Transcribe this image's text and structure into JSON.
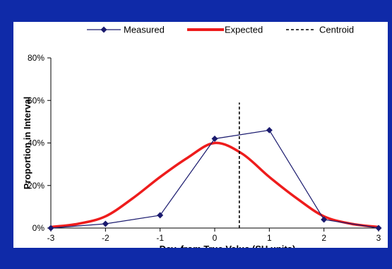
{
  "chart_data": {
    "type": "line",
    "title": "",
    "xlabel": "Dev. from True Value (SU units)",
    "ylabel": "Proportion in Interval",
    "xlim": [
      -3,
      3
    ],
    "ylim": [
      0,
      0.8
    ],
    "x_ticks": [
      -3,
      -2,
      -1,
      0,
      1,
      2,
      3
    ],
    "x_tick_labels": [
      "-3",
      "-2",
      "-1",
      "0",
      "1",
      "2",
      "3"
    ],
    "y_ticks": [
      0,
      0.2,
      0.4,
      0.6,
      0.8
    ],
    "y_tick_labels": [
      "0%",
      "20%",
      "40%",
      "60%",
      "80%"
    ],
    "grid": false,
    "legend_position": "top",
    "series": [
      {
        "name": "Measured",
        "style": "line-with-diamond-markers",
        "color": "#1a1a6e",
        "x": [
          -3,
          -2,
          -1,
          0,
          1,
          2,
          3
        ],
        "y": [
          0.0,
          0.02,
          0.06,
          0.42,
          0.46,
          0.04,
          0.0
        ]
      },
      {
        "name": "Expected",
        "style": "smooth-thick-line",
        "color": "#ee1c1c",
        "x": [
          -3,
          -2.5,
          -2,
          -1.5,
          -1,
          -0.5,
          0,
          0.5,
          1,
          1.5,
          2,
          2.5,
          3
        ],
        "y": [
          0.005,
          0.02,
          0.055,
          0.14,
          0.24,
          0.33,
          0.4,
          0.35,
          0.24,
          0.14,
          0.055,
          0.02,
          0.005
        ]
      },
      {
        "name": "Centroid",
        "style": "vertical-dashed-line",
        "color": "#000000",
        "x": [
          0.45,
          0.45
        ],
        "y": [
          0.0,
          0.59
        ]
      }
    ]
  }
}
